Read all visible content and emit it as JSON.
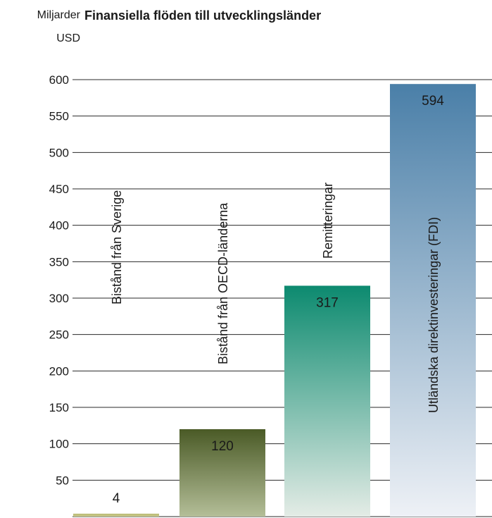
{
  "chart_data": {
    "type": "bar",
    "title": "Finansiella flöden till utvecklingsländer",
    "ylabel": [
      "Miljarder",
      "USD"
    ],
    "xlabel": "",
    "ylim": [
      0,
      600
    ],
    "yticks": [
      50,
      100,
      150,
      200,
      250,
      300,
      350,
      400,
      450,
      500,
      550,
      600
    ],
    "grid": true,
    "categories": [
      "Bistånd från Sverige",
      "Bistånd från OECD-länderna",
      "Remitteringar",
      "Utländska direktinvesteringar (FDI)"
    ],
    "values": [
      4,
      120,
      317,
      594
    ],
    "colors": [
      [
        "#b9b971",
        "#c9c98e"
      ],
      [
        "#4a5a26",
        "#b4be98"
      ],
      [
        "#0c8a6f",
        "#e4ece6"
      ],
      [
        "#4a7fa8",
        "#eef1f6"
      ]
    ]
  }
}
